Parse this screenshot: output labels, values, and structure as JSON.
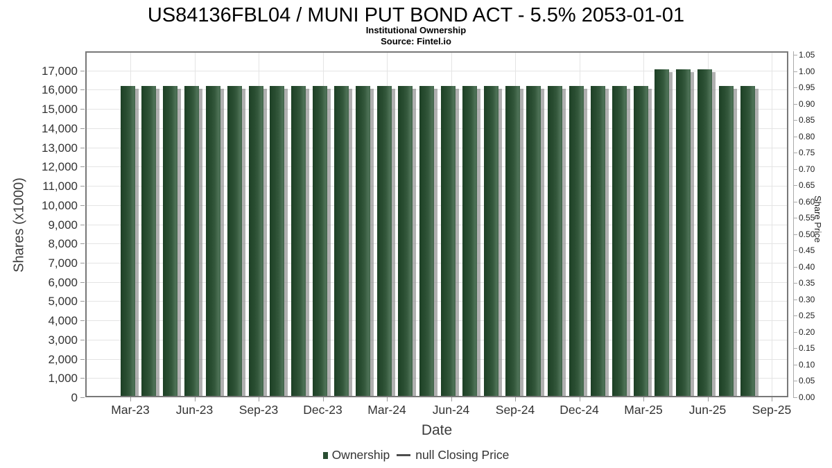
{
  "chart_data": {
    "type": "bar",
    "title": "US84136FBL04 / MUNI PUT BOND ACT - 5.5% 2053-01-01",
    "subtitle": "Institutional Ownership",
    "source_text": "Source: Fintel.io",
    "xlabel": "Date",
    "ylabel": "Shares (x1000)",
    "ylabel_right": "Share Price",
    "categories": [
      "Mar-23",
      "Apr-23",
      "May-23",
      "Jun-23",
      "Jul-23",
      "Aug-23",
      "Sep-23",
      "Oct-23",
      "Nov-23",
      "Dec-23",
      "Jan-24",
      "Feb-24",
      "Mar-24",
      "Apr-24",
      "May-24",
      "Jun-24",
      "Jul-24",
      "Aug-24",
      "Sep-24",
      "Oct-24",
      "Nov-24",
      "Dec-24",
      "Jan-25",
      "Feb-25",
      "Mar-25",
      "Apr-25",
      "May-25",
      "Jun-25",
      "Jul-25",
      "Aug-25"
    ],
    "series": [
      {
        "name": "Ownership",
        "type": "bar",
        "color": "#2a4e32",
        "values": [
          16200,
          16200,
          16200,
          16200,
          16200,
          16200,
          16200,
          16200,
          16200,
          16200,
          16200,
          16200,
          16200,
          16200,
          16200,
          16200,
          16200,
          16200,
          16200,
          16200,
          16200,
          16200,
          16200,
          16200,
          16200,
          17050,
          17050,
          17050,
          16200,
          16200
        ]
      },
      {
        "name": "null Closing Price",
        "type": "line",
        "color": "#4d4d4d",
        "values": []
      }
    ],
    "x_tick_labels": [
      "Mar-23",
      "Jun-23",
      "Sep-23",
      "Dec-23",
      "Mar-24",
      "Jun-24",
      "Sep-24",
      "Dec-24",
      "Mar-25",
      "Jun-25",
      "Sep-25"
    ],
    "y_left": {
      "min": 0,
      "max": 18000,
      "tick_step": 1000,
      "tick_max": 17000
    },
    "y_right": {
      "min": 0,
      "max": 1.0607,
      "tick_step": 0.05,
      "tick_max": 1.05
    },
    "grid": true,
    "legend_position": "bottom"
  },
  "legend": {
    "items": [
      {
        "label": "Ownership",
        "marker": "square",
        "color": "#2a4e32"
      },
      {
        "label": "null Closing Price",
        "marker": "dash",
        "color": "#4d4d4d"
      }
    ]
  }
}
